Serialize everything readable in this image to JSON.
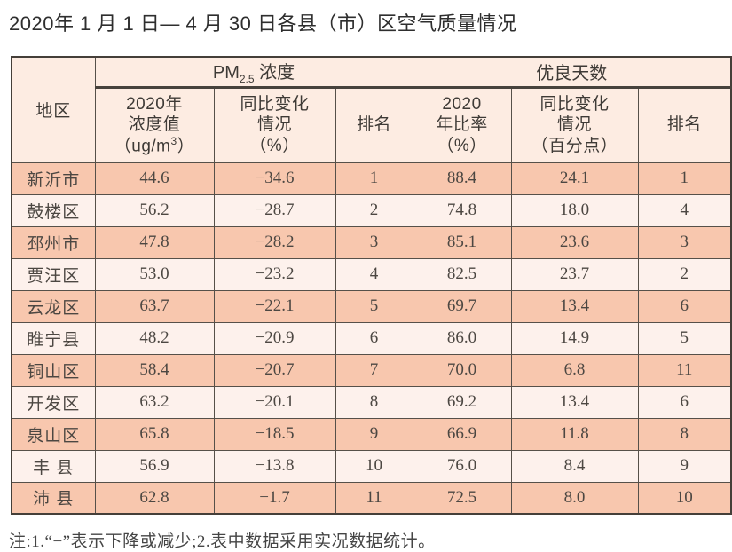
{
  "title": "2020年 1 月 1 日— 4 月 30 日各县（市）区空气质量情况",
  "table": {
    "corner_label": "地区",
    "pm_group": {
      "prefix": "PM",
      "subscript": "2.5",
      "suffix": " 浓度"
    },
    "good_group_label": "优良天数",
    "sub_headers": {
      "pm_value": {
        "line1": "2020年",
        "line2": "浓度值",
        "unit_prefix": "（ug/m",
        "unit_sup": "3",
        "unit_suffix": "）"
      },
      "pm_change": [
        "同比变化",
        "情况",
        "（%）"
      ],
      "pm_rank": "排名",
      "good_rate": [
        "2020",
        "年比率",
        "（%）"
      ],
      "good_change": [
        "同比变化",
        "情况",
        "（百分点）"
      ],
      "good_rank": "排名"
    },
    "rows": [
      [
        "新沂市",
        "44.6",
        "−34.6",
        "1",
        "88.4",
        "24.1",
        "1"
      ],
      [
        "鼓楼区",
        "56.2",
        "−28.7",
        "2",
        "74.8",
        "18.0",
        "4"
      ],
      [
        "邳州市",
        "47.8",
        "−28.2",
        "3",
        "85.1",
        "23.6",
        "3"
      ],
      [
        "贾汪区",
        "53.0",
        "−23.2",
        "4",
        "82.5",
        "23.7",
        "2"
      ],
      [
        "云龙区",
        "63.7",
        "−22.1",
        "5",
        "69.7",
        "13.4",
        "6"
      ],
      [
        "睢宁县",
        "48.2",
        "−20.9",
        "6",
        "86.0",
        "14.9",
        "5"
      ],
      [
        "铜山区",
        "58.4",
        "−20.7",
        "7",
        "70.0",
        "6.8",
        "11"
      ],
      [
        "开发区",
        "63.2",
        "−20.1",
        "8",
        "69.2",
        "13.4",
        "6"
      ],
      [
        "泉山区",
        "65.8",
        "−18.5",
        "9",
        "66.9",
        "11.8",
        "8"
      ],
      [
        "丰 县",
        "56.9",
        "−13.8",
        "10",
        "76.0",
        "8.4",
        "9"
      ],
      [
        "沛 县",
        "62.8",
        "−1.7",
        "11",
        "72.5",
        "8.0",
        "10"
      ]
    ]
  },
  "note": "注:1.“−”表示下降或减少;2.表中数据采用实况数据统计。",
  "colors": {
    "row_odd_bg": "#f8c7ae",
    "row_even_bg": "#fdf1ec",
    "header_bg": "#fdece2",
    "border": "#565049",
    "text": "#4c4742"
  }
}
